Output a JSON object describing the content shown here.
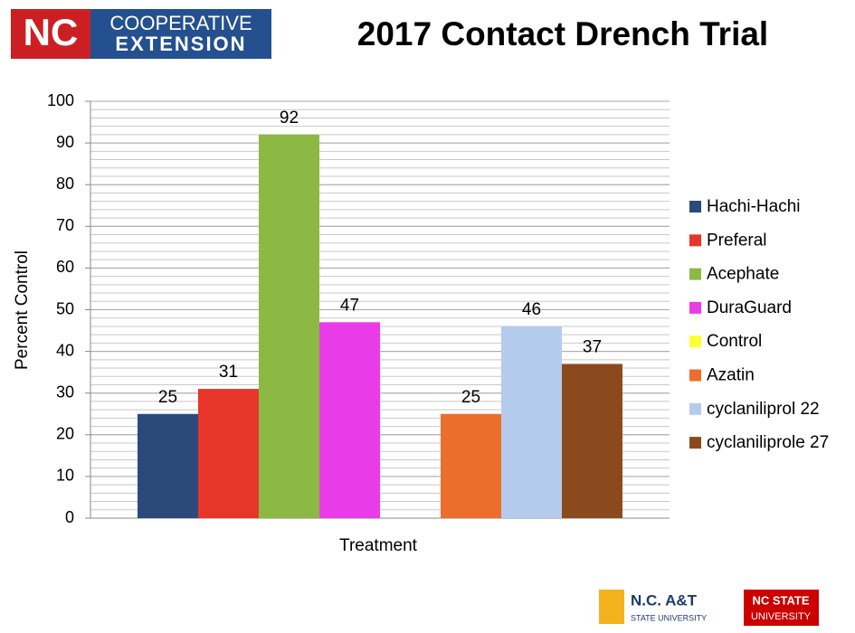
{
  "header": {
    "logo_mark": "NC",
    "logo_line1": "COOPERATIVE",
    "logo_line2": "EXTENSION"
  },
  "footer": {
    "logo1_line1": "N.C. A&T",
    "logo1_line2": "STATE UNIVERSITY",
    "logo2_line1": "NC STATE",
    "logo2_line2": "UNIVERSITY"
  },
  "chart_data": {
    "type": "bar",
    "title": "2017 Contact Drench Trial",
    "y_label": "Percent Control",
    "x_label": "Treatment",
    "ylim": [
      0,
      100
    ],
    "yticks": [
      0,
      10,
      20,
      30,
      40,
      50,
      60,
      70,
      80,
      90,
      100
    ],
    "grid": true,
    "minor_grid_step": 2,
    "legend": "right",
    "series": [
      {
        "name": "Hachi-Hachi",
        "color": "#2b4a7c",
        "values": [
          25
        ]
      },
      {
        "name": "Preferal",
        "color": "#e8352a",
        "values": [
          31
        ]
      },
      {
        "name": "Acephate",
        "color": "#8bb944",
        "values": [
          92
        ]
      },
      {
        "name": "DuraGuard",
        "color": "#ea3be8",
        "values": [
          47
        ]
      },
      {
        "name": "Control",
        "color": "#ffff33",
        "values": [
          0
        ]
      },
      {
        "name": "Azatin",
        "color": "#ec6e2c",
        "values": [
          25
        ]
      },
      {
        "name": "cyclaniliprol 22",
        "color": "#b5cbee",
        "values": [
          46
        ]
      },
      {
        "name": "cyclaniliprole 27",
        "color": "#8b4a1e",
        "values": [
          37
        ]
      }
    ]
  }
}
